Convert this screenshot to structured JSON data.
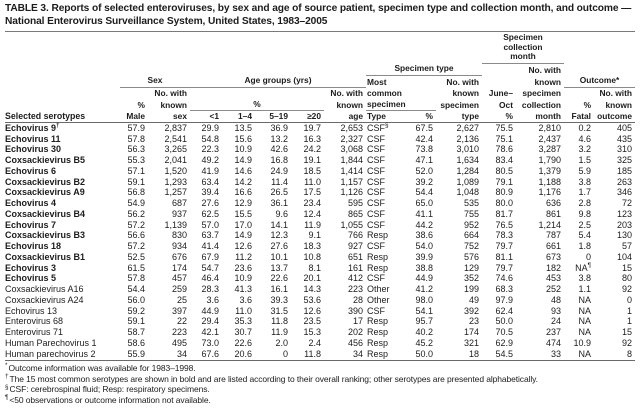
{
  "colors": {
    "text": "#1c1c1c",
    "rule_heavy": "#6a6a6a",
    "rule_group": "#8a8a8a",
    "background": "#ffffff"
  },
  "title": "TABLE 3. Reports of selected enteroviruses, by sex and age of source patient, specimen type and collection month, and outcome — National Enterovirus Surveillance System, United States, 1983–2005",
  "header": {
    "selected_serotypes": "Selected serotypes",
    "sex_group": "Sex",
    "age_group": "Age groups (yrs)",
    "specimen_type_group": "Specimen type",
    "collection_month_group": "Specimen\ncollection\nmonth",
    "outcome_group": "Outcome*",
    "pct_span": "%",
    "tokens": {
      "no_with": "No. with",
      "known": "known",
      "pct": "%"
    },
    "most": "Most",
    "common": "common",
    "specimen": "specimen",
    "june": "June–",
    "oct": "Oct",
    "collection": "collection",
    "month": "month",
    "male": "Male",
    "sex": "sex",
    "age_lt1": "<1",
    "age_1_4": "1–4",
    "age_5_19": "5–19",
    "age_ge20": "≥20",
    "age": "age",
    "type_cap": "Type",
    "type": "type",
    "fatal": "Fatal",
    "outcome": "outcome"
  },
  "table": {
    "rows": [
      {
        "name": "Echovirus 9",
        "name_sup": "†",
        "bold": true,
        "type_sup": "§",
        "fatal_sup": "",
        "cells": [
          "57.9",
          "2,837",
          "29.9",
          "13.5",
          "36.9",
          "19.7",
          "2,653",
          "CSF",
          "67.5",
          "2,627",
          "75.5",
          "2,810",
          "0.2",
          "405"
        ]
      },
      {
        "name": "Echovirus 11",
        "name_sup": "",
        "bold": true,
        "type_sup": "",
        "fatal_sup": "",
        "cells": [
          "57.8",
          "2,541",
          "54.8",
          "15.6",
          "13.2",
          "16.3",
          "2,327",
          "CSF",
          "42.4",
          "2,136",
          "75.1",
          "2,437",
          "4.6",
          "435"
        ]
      },
      {
        "name": "Echovirus 30",
        "name_sup": "",
        "bold": true,
        "type_sup": "",
        "fatal_sup": "",
        "cells": [
          "56.3",
          "3,265",
          "22.3",
          "10.9",
          "42.6",
          "24.2",
          "3,068",
          "CSF",
          "73.8",
          "3,010",
          "78.6",
          "3,287",
          "3.2",
          "310"
        ]
      },
      {
        "name": "Coxsackievirus B5",
        "name_sup": "",
        "bold": true,
        "type_sup": "",
        "fatal_sup": "",
        "cells": [
          "55.3",
          "2,041",
          "49.2",
          "14.9",
          "16.8",
          "19.1",
          "1,844",
          "CSF",
          "47.1",
          "1,634",
          "83.4",
          "1,790",
          "1.5",
          "325"
        ]
      },
      {
        "name": "Echovirus 6",
        "name_sup": "",
        "bold": true,
        "type_sup": "",
        "fatal_sup": "",
        "cells": [
          "57.1",
          "1,520",
          "41.9",
          "14.6",
          "24.9",
          "18.5",
          "1,414",
          "CSF",
          "52.0",
          "1,284",
          "80.5",
          "1,379",
          "5.9",
          "185"
        ]
      },
      {
        "name": "Coxsackievirus B2",
        "name_sup": "",
        "bold": true,
        "type_sup": "",
        "fatal_sup": "",
        "cells": [
          "59.1",
          "1,293",
          "63.4",
          "14.2",
          "11.4",
          "11.0",
          "1,157",
          "CSF",
          "39.2",
          "1,089",
          "79.1",
          "1,188",
          "3.8",
          "263"
        ]
      },
      {
        "name": "Coxsackievirus A9",
        "name_sup": "",
        "bold": true,
        "type_sup": "",
        "fatal_sup": "",
        "cells": [
          "56.8",
          "1,257",
          "39.4",
          "16.6",
          "26.5",
          "17.5",
          "1,126",
          "CSF",
          "54.4",
          "1,048",
          "80.9",
          "1,176",
          "1.7",
          "346"
        ]
      },
      {
        "name": "Echovirus 4",
        "name_sup": "",
        "bold": true,
        "type_sup": "",
        "fatal_sup": "",
        "cells": [
          "54.9",
          "687",
          "27.6",
          "12.9",
          "36.1",
          "23.4",
          "595",
          "CSF",
          "65.0",
          "535",
          "80.0",
          "636",
          "2.8",
          "72"
        ]
      },
      {
        "name": "Coxsackievirus B4",
        "name_sup": "",
        "bold": true,
        "type_sup": "",
        "fatal_sup": "",
        "cells": [
          "56.2",
          "937",
          "62.5",
          "15.5",
          "9.6",
          "12.4",
          "865",
          "CSF",
          "41.1",
          "755",
          "81.7",
          "861",
          "9.8",
          "123"
        ]
      },
      {
        "name": "Echovirus 7",
        "name_sup": "",
        "bold": true,
        "type_sup": "",
        "fatal_sup": "",
        "cells": [
          "57.2",
          "1,139",
          "57.0",
          "17.0",
          "14.1",
          "11.9",
          "1,055",
          "CSF",
          "44.2",
          "952",
          "76.5",
          "1,214",
          "2.5",
          "203"
        ]
      },
      {
        "name": "Coxsackievirus B3",
        "name_sup": "",
        "bold": true,
        "type_sup": "",
        "fatal_sup": "",
        "cells": [
          "56.6",
          "830",
          "63.7",
          "14.9",
          "12.3",
          "9.1",
          "766",
          "Resp",
          "38.6",
          "664",
          "78.3",
          "787",
          "5.4",
          "130"
        ]
      },
      {
        "name": "Echovirus 18",
        "name_sup": "",
        "bold": true,
        "type_sup": "",
        "fatal_sup": "",
        "cells": [
          "57.2",
          "934",
          "41.4",
          "12.6",
          "27.6",
          "18.3",
          "927",
          "CSF",
          "54.0",
          "752",
          "79.7",
          "661",
          "1.8",
          "57"
        ]
      },
      {
        "name": "Coxsackievirus B1",
        "name_sup": "",
        "bold": true,
        "type_sup": "",
        "fatal_sup": "",
        "cells": [
          "52.5",
          "676",
          "67.9",
          "11.2",
          "10.1",
          "10.8",
          "651",
          "Resp",
          "39.9",
          "576",
          "81.1",
          "673",
          "0",
          "104"
        ]
      },
      {
        "name": "Echovirus 3",
        "name_sup": "",
        "bold": true,
        "type_sup": "",
        "fatal_sup": "¶",
        "cells": [
          "61.5",
          "174",
          "54.7",
          "23.6",
          "13.7",
          "8.1",
          "161",
          "Resp",
          "38.8",
          "129",
          "79.7",
          "182",
          "NA",
          "15"
        ]
      },
      {
        "name": "Echovirus 5",
        "name_sup": "",
        "bold": true,
        "type_sup": "",
        "fatal_sup": "",
        "cells": [
          "57.8",
          "457",
          "46.4",
          "10.9",
          "22.6",
          "20.1",
          "412",
          "CSF",
          "44.9",
          "352",
          "74.6",
          "453",
          "3.8",
          "80"
        ]
      },
      {
        "name": "Coxsackievirus A16",
        "name_sup": "",
        "bold": false,
        "type_sup": "",
        "fatal_sup": "",
        "cells": [
          "54.4",
          "259",
          "28.3",
          "41.3",
          "16.1",
          "14.3",
          "223",
          "Other",
          "41.2",
          "199",
          "68.3",
          "252",
          "1.1",
          "92"
        ]
      },
      {
        "name": "Coxsackievirus A24",
        "name_sup": "",
        "bold": false,
        "type_sup": "",
        "fatal_sup": "",
        "cells": [
          "56.0",
          "25",
          "3.6",
          "3.6",
          "39.3",
          "53.6",
          "28",
          "Other",
          "98.0",
          "49",
          "97.9",
          "48",
          "NA",
          "0"
        ]
      },
      {
        "name": "Echovirus 13",
        "name_sup": "",
        "bold": false,
        "type_sup": "",
        "fatal_sup": "",
        "cells": [
          "59.2",
          "397",
          "44.9",
          "11.0",
          "31.5",
          "12.6",
          "390",
          "CSF",
          "54.1",
          "392",
          "62.4",
          "93",
          "NA",
          "1"
        ]
      },
      {
        "name": "Enterovirus 68",
        "name_sup": "",
        "bold": false,
        "type_sup": "",
        "fatal_sup": "",
        "cells": [
          "59.1",
          "22",
          "29.4",
          "35.3",
          "11.8",
          "23.5",
          "17",
          "Resp",
          "95.7",
          "23",
          "50.0",
          "24",
          "NA",
          "1"
        ]
      },
      {
        "name": "Enterovirus 71",
        "name_sup": "",
        "bold": false,
        "type_sup": "",
        "fatal_sup": "",
        "cells": [
          "58.7",
          "223",
          "42.1",
          "30.7",
          "11.9",
          "15.3",
          "202",
          "Resp",
          "40.2",
          "174",
          "70.5",
          "237",
          "NA",
          "15"
        ]
      },
      {
        "name": "Human Parechovirus 1",
        "name_sup": "",
        "bold": false,
        "type_sup": "",
        "fatal_sup": "",
        "cells": [
          "58.6",
          "495",
          "73.0",
          "22.6",
          "2.0",
          "2.4",
          "456",
          "Resp",
          "45.2",
          "321",
          "62.9",
          "474",
          "10.9",
          "92"
        ]
      },
      {
        "name": "Human parechovirus 2",
        "name_sup": "",
        "bold": false,
        "type_sup": "",
        "fatal_sup": "",
        "cells": [
          "55.9",
          "34",
          "67.6",
          "20.6",
          "0",
          "11.8",
          "34",
          "Resp",
          "50.0",
          "18",
          "54.5",
          "33",
          "NA",
          "8"
        ]
      }
    ]
  },
  "footnotes": [
    {
      "sup": "*",
      "text": "Outcome information was available for 1983–1998."
    },
    {
      "sup": "†",
      "text": "The 15 most common serotypes are shown in bold and are listed according to their overall ranking; other serotypes are presented alphabetically."
    },
    {
      "sup": "§",
      "text": "CSF: cerebrospinal fluid; Resp: respiratory specimens."
    },
    {
      "sup": "¶",
      "text": "<50 observations or outcome information not available."
    }
  ]
}
